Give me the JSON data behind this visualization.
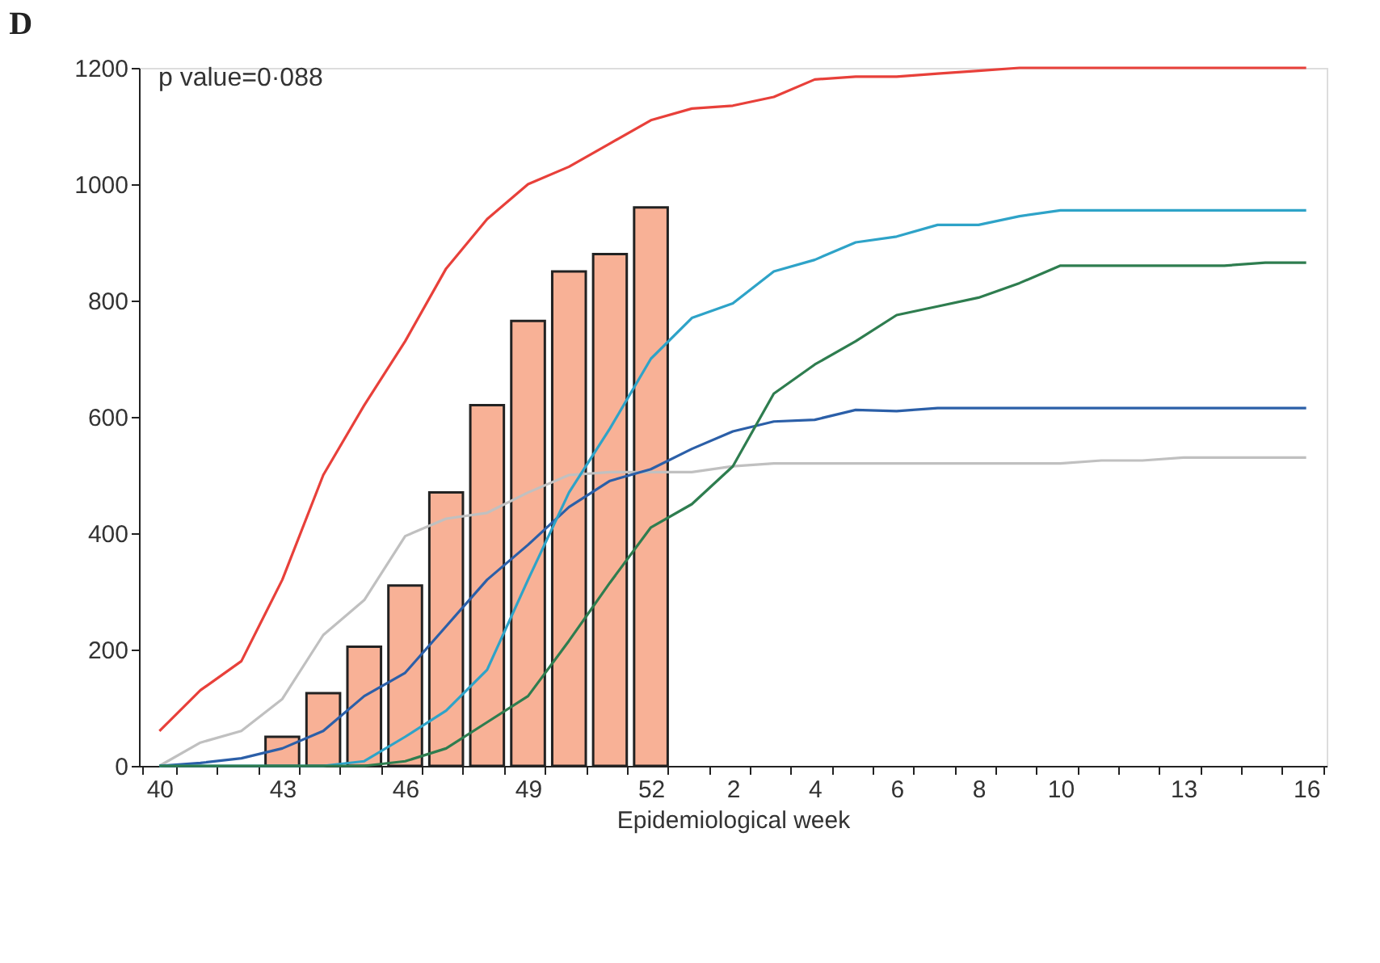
{
  "chart_data": {
    "type": "line",
    "title": "D",
    "xlabel": "Epidemiological week",
    "annotations": [
      "p value=0·088"
    ],
    "categories": [
      "40",
      null,
      null,
      "43",
      null,
      null,
      "46",
      null,
      null,
      "49",
      null,
      null,
      "52",
      null,
      "2",
      null,
      "4",
      null,
      "6",
      null,
      "8",
      null,
      "10",
      null,
      null,
      "13",
      null,
      null,
      "16"
    ],
    "series": [
      {
        "type": "bar",
        "color": "#f8b196",
        "values": [
          null,
          null,
          null,
          50,
          125,
          205,
          310,
          470,
          620,
          765,
          850,
          880,
          960,
          null,
          null,
          null,
          null,
          null,
          null,
          null,
          null,
          null,
          null,
          null,
          null,
          null,
          null,
          null,
          null
        ]
      },
      {
        "color": "#e8403a",
        "values": [
          60,
          130,
          180,
          320,
          500,
          620,
          730,
          855,
          940,
          1000,
          1030,
          1070,
          1110,
          1130,
          1135,
          1150,
          1180,
          1185,
          1185,
          1190,
          1195,
          1200,
          1200,
          1200,
          1200,
          1200,
          1200,
          1200,
          1200
        ]
      },
      {
        "color": "#c0c0c0",
        "values": [
          0,
          40,
          60,
          115,
          225,
          285,
          395,
          425,
          435,
          470,
          500,
          505,
          505,
          505,
          515,
          520,
          520,
          520,
          520,
          520,
          520,
          520,
          520,
          525,
          525,
          530,
          530,
          530,
          530
        ]
      },
      {
        "color": "#2b5fa8",
        "values": [
          0,
          5,
          13,
          30,
          60,
          120,
          160,
          240,
          320,
          380,
          445,
          490,
          510,
          545,
          575,
          592,
          595,
          612,
          610,
          615,
          615,
          615,
          615,
          615,
          615,
          615,
          615,
          615,
          615
        ]
      },
      {
        "color": "#2ea3c8",
        "values": [
          0,
          0,
          0,
          0,
          0,
          8,
          50,
          95,
          165,
          320,
          470,
          580,
          700,
          770,
          795,
          850,
          870,
          900,
          910,
          930,
          930,
          945,
          955,
          955,
          955,
          955,
          955,
          955,
          955
        ]
      },
      {
        "color": "#2e7d4f",
        "values": [
          0,
          0,
          0,
          0,
          0,
          0,
          8,
          30,
          75,
          120,
          215,
          315,
          410,
          450,
          515,
          640,
          690,
          730,
          775,
          790,
          805,
          830,
          860,
          860,
          860,
          860,
          860,
          865,
          865
        ]
      }
    ],
    "ylim": [
      0,
      1200
    ],
    "yticks": [
      0,
      200,
      400,
      600,
      800,
      1000,
      1200
    ],
    "grid": false,
    "line_style": "solid",
    "marker": "none"
  }
}
